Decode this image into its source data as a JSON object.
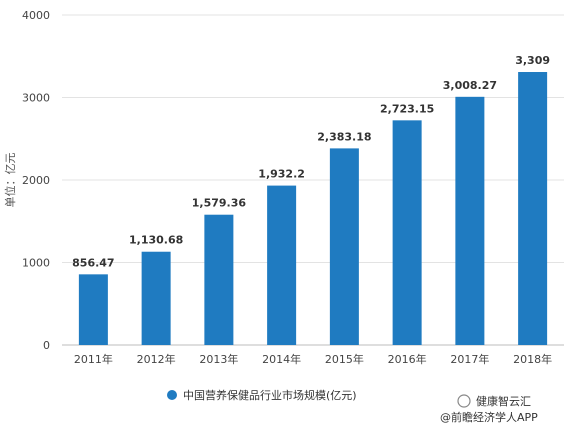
{
  "chart_data": {
    "type": "bar",
    "categories": [
      "2011年",
      "2012年",
      "2013年",
      "2014年",
      "2015年",
      "2016年",
      "2017年",
      "2018年"
    ],
    "series": [
      {
        "name": "中国营养保健品行业市场规模(亿元)",
        "values": [
          856.47,
          1130.68,
          1579.36,
          1932.2,
          2383.18,
          2723.15,
          3008.27,
          3309
        ],
        "labels": [
          "856.47",
          "1,130.68",
          "1,579.36",
          "1,932.2",
          "2,383.18",
          "2,723.15",
          "3,008.27",
          "3,309"
        ]
      }
    ],
    "ylabel": "单位：亿元",
    "ylim": [
      0,
      4000
    ],
    "yticks": [
      0,
      1000,
      2000,
      3000,
      4000
    ],
    "grid": true,
    "legend_position": "bottom",
    "bar_color": "#1f7bc1"
  },
  "watermark": {
    "text": "健康智云汇",
    "subtext": "@前瞻经济学人APP"
  }
}
